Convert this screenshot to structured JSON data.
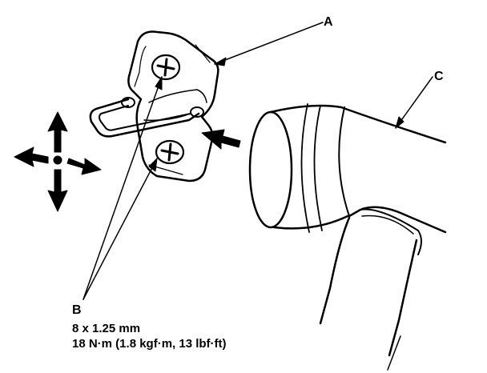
{
  "labels": {
    "a": "A",
    "b": "B",
    "c": "C"
  },
  "callout_b": {
    "bolt_size": "8 x 1.25 mm",
    "torque": "18 N·m (1.8 kgf·m, 13 lbf·ft)"
  },
  "colors": {
    "ink": "#000000",
    "background": "#ffffff"
  },
  "icons": [
    "move-arrows-icon",
    "push-arrow-icon",
    "screw-icon"
  ]
}
